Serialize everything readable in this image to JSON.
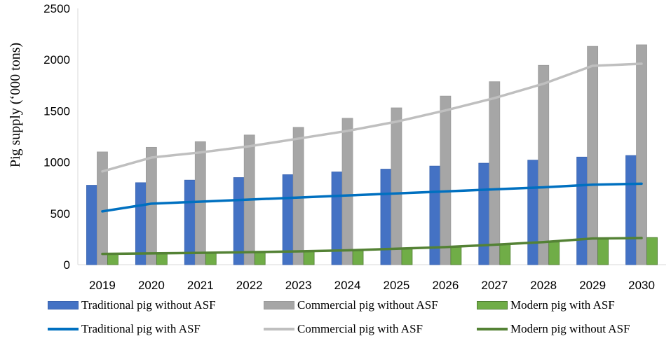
{
  "chart_data": {
    "type": "bar",
    "title": "",
    "xlabel": "",
    "ylabel": "Pig supply (‘000 tons)",
    "ylim": [
      0,
      2500
    ],
    "yticks": [
      "0",
      "500",
      "1000",
      "1500",
      "2000",
      "2500"
    ],
    "categories": [
      "2019",
      "2020",
      "2021",
      "2022",
      "2023",
      "2024",
      "2025",
      "2026",
      "2027",
      "2028",
      "2029",
      "2030"
    ],
    "bar_series": [
      {
        "name": "Traditional pig without ASF",
        "color": "#4472c4",
        "border": "#3a64b0",
        "values": [
          775,
          800,
          825,
          850,
          878,
          905,
          932,
          962,
          990,
          1020,
          1050,
          1065
        ]
      },
      {
        "name": "Commercial pig without ASF",
        "color": "#a6a6a6",
        "border": "#9a9a9a",
        "values": [
          1100,
          1145,
          1200,
          1265,
          1340,
          1428,
          1530,
          1645,
          1785,
          1945,
          2130,
          2145
        ]
      },
      {
        "name": "Modern pig with ASF",
        "color": "#70ad47",
        "border": "#507e32",
        "values": [
          105,
          110,
          115,
          122,
          130,
          140,
          155,
          172,
          195,
          220,
          248,
          265
        ]
      }
    ],
    "line_series": [
      {
        "name": "Traditional pig with ASF",
        "color": "#0070c0",
        "values": [
          520,
          595,
          615,
          635,
          655,
          675,
          695,
          715,
          735,
          755,
          780,
          790
        ]
      },
      {
        "name": "Commercial pig with ASF",
        "color": "#bfbfbf",
        "values": [
          910,
          1045,
          1095,
          1155,
          1230,
          1305,
          1395,
          1505,
          1625,
          1765,
          1940,
          1960
        ]
      },
      {
        "name": "Modern pig without ASF",
        "color": "#548235",
        "values": [
          105,
          110,
          115,
          122,
          130,
          140,
          155,
          172,
          195,
          220,
          255,
          260
        ]
      }
    ],
    "legend": {
      "row1": [
        {
          "label": "Traditional pig without ASF",
          "kind": "bar",
          "color": "#4472c4",
          "border": "#3a64b0"
        },
        {
          "label": "Commercial pig without ASF",
          "kind": "bar",
          "color": "#a6a6a6",
          "border": "#9a9a9a"
        },
        {
          "label": "Modern pig with ASF",
          "kind": "bar",
          "color": "#70ad47",
          "border": "#507e32"
        }
      ],
      "row2": [
        {
          "label": "Traditional pig with ASF",
          "kind": "line",
          "color": "#0070c0"
        },
        {
          "label": "Commercial pig with ASF",
          "kind": "line",
          "color": "#bfbfbf"
        },
        {
          "label": "Modern pig without ASF",
          "kind": "line",
          "color": "#548235"
        }
      ]
    }
  }
}
